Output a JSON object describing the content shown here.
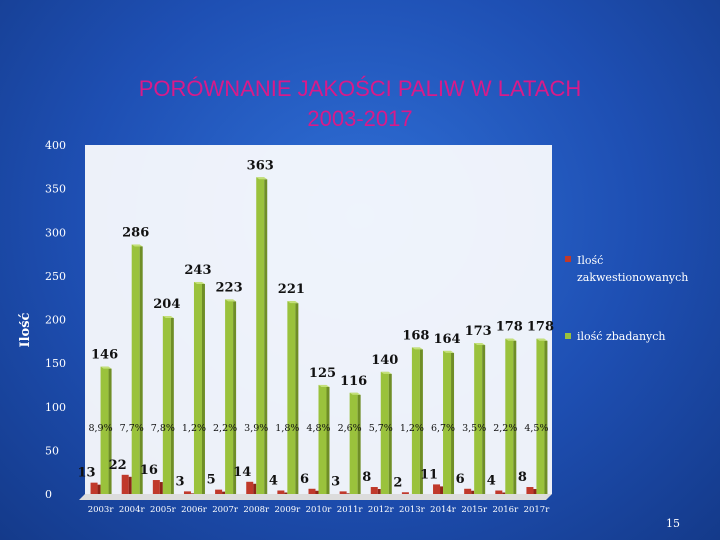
{
  "slide": {
    "title_line1": "PORÓWNANIE JAKOŚCI PALIW W LATACH",
    "title_line2": "2003-2017",
    "page_number": "15"
  },
  "colors": {
    "series_red": "#c0392b",
    "series_green": "#9ac23c",
    "title": "#d91a8a"
  },
  "chart_data": {
    "type": "bar",
    "ylabel": "Ilość",
    "ylim": [
      0,
      400
    ],
    "yticks": [
      0,
      50,
      100,
      150,
      200,
      250,
      300,
      350,
      400
    ],
    "grid": false,
    "legend_position": "right",
    "categories": [
      "2003r",
      "2004r",
      "2005r",
      "2006r",
      "2007r",
      "2008r",
      "2009r",
      "2010r",
      "2011r",
      "2012r",
      "2013r",
      "2014r",
      "2015r",
      "2016r",
      "2017r"
    ],
    "series": [
      {
        "name": "Ilość zakwestionowanych",
        "color": "#c0392b",
        "values": [
          13,
          22,
          16,
          3,
          5,
          14,
          4,
          6,
          3,
          8,
          2,
          11,
          6,
          4,
          8
        ]
      },
      {
        "name": "ilość zbadanych",
        "color": "#9ac23c",
        "values": [
          146,
          286,
          204,
          243,
          223,
          363,
          221,
          125,
          116,
          140,
          168,
          164,
          173,
          178,
          178
        ]
      }
    ],
    "percentages": [
      "8,9%",
      "7,7%",
      "7,8%",
      "1,2%",
      "2,2%",
      "3,9%",
      "1,8%",
      "4,8%",
      "2,6%",
      "5,7%",
      "1,2%",
      "6,7%",
      "3,5%",
      "2,2%",
      "4,5%"
    ]
  }
}
